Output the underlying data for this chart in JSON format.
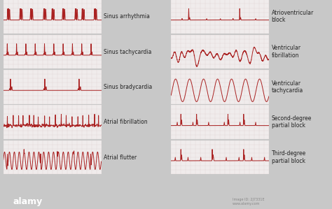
{
  "bg_outer": "#c8c8c8",
  "bg_panel": "#f0ecec",
  "grid_color": "#d8c8c8",
  "ecg_color": "#aa2222",
  "text_color": "#222222",
  "bottom_bar": "#111111",
  "labels_left": [
    "Sinus arrhythmia",
    "Sinus tachycardia",
    "Sinus bradycardia",
    "Atrial fibrillation",
    "Atrial flutter"
  ],
  "labels_right": [
    "Atrioventricular\nblock",
    "Ventricular\nfibrillation",
    "Ventricular\ntachycardia",
    "Second-degree\npartial block",
    "Third-degree\npartial block"
  ],
  "font_size": 5.5,
  "line_width": 0.7,
  "figsize": [
    4.74,
    2.99
  ],
  "dpi": 100
}
